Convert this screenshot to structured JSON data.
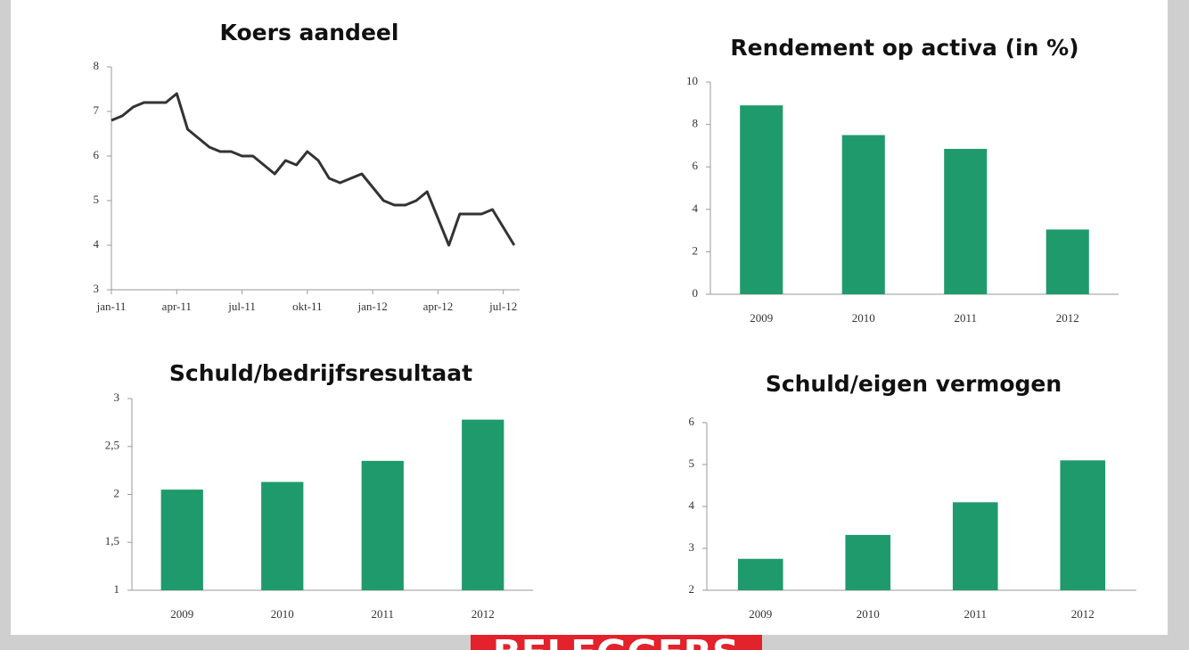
{
  "chart_data": [
    {
      "type": "line",
      "title": "Koers aandeel",
      "categories": [
        "jan-11",
        null,
        null,
        null,
        null,
        null,
        "apr-11",
        null,
        null,
        null,
        null,
        null,
        "jul-11",
        null,
        null,
        null,
        null,
        null,
        "okt-11",
        null,
        null,
        null,
        null,
        null,
        "jan-12",
        null,
        null,
        null,
        null,
        null,
        "apr-12",
        null,
        null,
        null,
        null,
        null,
        "jul-12",
        null
      ],
      "values": [
        6.8,
        6.9,
        7.1,
        7.2,
        7.2,
        7.2,
        7.4,
        6.6,
        6.4,
        6.2,
        6.1,
        6.1,
        6.0,
        6.0,
        5.8,
        5.6,
        5.9,
        5.8,
        6.1,
        5.9,
        5.5,
        5.4,
        5.5,
        5.6,
        5.3,
        5.0,
        4.9,
        4.9,
        5.0,
        5.2,
        4.6,
        4.0,
        4.7,
        4.7,
        4.7,
        4.8,
        4.4,
        4.0
      ],
      "color": "#333333",
      "ylim": [
        3,
        8
      ],
      "yticks": [
        3,
        4,
        5,
        6,
        7,
        8
      ]
    },
    {
      "type": "bar",
      "title": "Rendement op activa (in %)",
      "categories": [
        "2009",
        "2010",
        "2011",
        "2012"
      ],
      "values": [
        8.9,
        7.5,
        6.85,
        3.05
      ],
      "color": "#1f9a6c",
      "ylim": [
        0,
        10
      ],
      "yticks": [
        0,
        2,
        4,
        6,
        8,
        10
      ]
    },
    {
      "type": "bar",
      "title": "Schuld/bedrijfsresultaat",
      "categories": [
        "2009",
        "2010",
        "2011",
        "2012"
      ],
      "values": [
        2.05,
        2.13,
        2.35,
        2.78
      ],
      "color": "#1f9a6c",
      "ylim": [
        1,
        3
      ],
      "yticks": [
        1,
        {
          "value": 1.5,
          "label": "1,5"
        },
        2,
        {
          "value": 2.5,
          "label": "2,5"
        },
        3
      ]
    },
    {
      "type": "bar",
      "title": "Schuld/eigen vermogen",
      "categories": [
        "2009",
        "2010",
        "2011",
        "2012"
      ],
      "values": [
        2.75,
        3.32,
        4.1,
        5.1
      ],
      "color": "#1f9a6c",
      "ylim": [
        2,
        6
      ],
      "yticks": [
        2,
        3,
        4,
        5,
        6
      ]
    }
  ],
  "banner": "BELEGGERS"
}
